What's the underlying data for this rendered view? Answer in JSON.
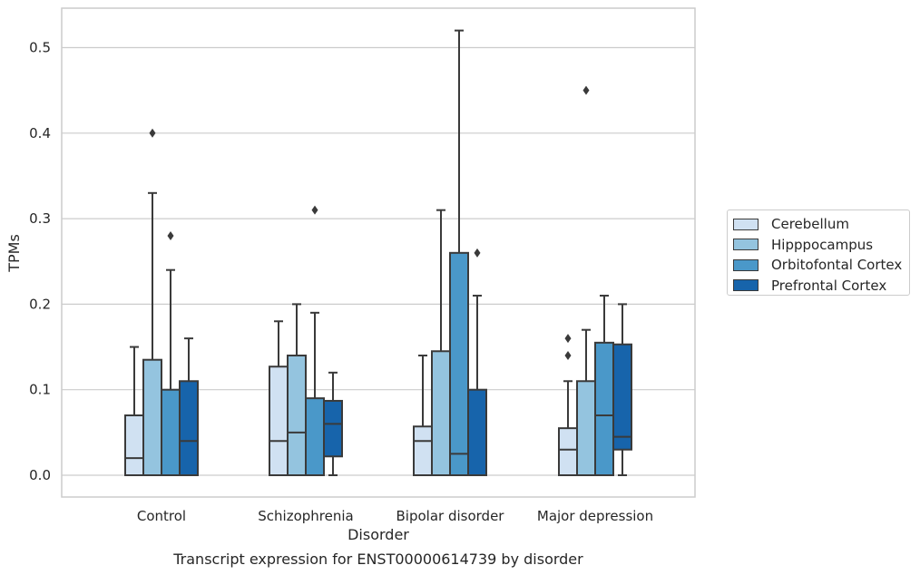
{
  "chart_data": {
    "type": "box",
    "title": "Transcript expression for ENST00000614739 by disorder",
    "xlabel": "Disorder",
    "ylabel": "TPMs",
    "ylim": [
      -0.025,
      0.55
    ],
    "yticks": [
      "0.0",
      "0.1",
      "0.2",
      "0.3",
      "0.4",
      "0.5"
    ],
    "categories": [
      "Control",
      "Schizophrenia",
      "Bipolar disorder",
      "Major depression"
    ],
    "grid": true,
    "legend_position": "right",
    "series": [
      {
        "name": "Cerebellum",
        "color": "#d0e1f2",
        "boxes": [
          {
            "whisker_low": 0.0,
            "q1": 0.0,
            "median": 0.02,
            "q3": 0.07,
            "whisker_high": 0.15,
            "outliers": []
          },
          {
            "whisker_low": 0.0,
            "q1": 0.0,
            "median": 0.04,
            "q3": 0.127,
            "whisker_high": 0.18,
            "outliers": []
          },
          {
            "whisker_low": 0.0,
            "q1": 0.0,
            "median": 0.04,
            "q3": 0.057,
            "whisker_high": 0.14,
            "outliers": []
          },
          {
            "whisker_low": 0.0,
            "q1": 0.0,
            "median": 0.03,
            "q3": 0.055,
            "whisker_high": 0.11,
            "outliers": [
              0.14,
              0.16
            ]
          }
        ]
      },
      {
        "name": "Hipppocampus",
        "color": "#94c4df",
        "boxes": [
          {
            "whisker_low": 0.0,
            "q1": 0.0,
            "median": 0.0,
            "q3": 0.135,
            "whisker_high": 0.33,
            "outliers": [
              0.4
            ]
          },
          {
            "whisker_low": 0.0,
            "q1": 0.0,
            "median": 0.05,
            "q3": 0.14,
            "whisker_high": 0.2,
            "outliers": []
          },
          {
            "whisker_low": 0.0,
            "q1": 0.0,
            "median": 0.0,
            "q3": 0.145,
            "whisker_high": 0.31,
            "outliers": []
          },
          {
            "whisker_low": 0.0,
            "q1": 0.0,
            "median": 0.0,
            "q3": 0.11,
            "whisker_high": 0.17,
            "outliers": [
              0.45
            ]
          }
        ]
      },
      {
        "name": "Orbitofontal Cortex",
        "color": "#4a98c9",
        "boxes": [
          {
            "whisker_low": 0.0,
            "q1": 0.0,
            "median": 0.0,
            "q3": 0.1,
            "whisker_high": 0.24,
            "outliers": [
              0.28
            ]
          },
          {
            "whisker_low": 0.0,
            "q1": 0.0,
            "median": 0.0,
            "q3": 0.09,
            "whisker_high": 0.19,
            "outliers": [
              0.31
            ]
          },
          {
            "whisker_low": 0.0,
            "q1": 0.0,
            "median": 0.025,
            "q3": 0.26,
            "whisker_high": 0.52,
            "outliers": []
          },
          {
            "whisker_low": 0.0,
            "q1": 0.0,
            "median": 0.07,
            "q3": 0.155,
            "whisker_high": 0.21,
            "outliers": []
          }
        ]
      },
      {
        "name": "Prefrontal Cortex",
        "color": "#1764ab",
        "boxes": [
          {
            "whisker_low": 0.0,
            "q1": 0.0,
            "median": 0.04,
            "q3": 0.11,
            "whisker_high": 0.16,
            "outliers": []
          },
          {
            "whisker_low": 0.0,
            "q1": 0.022,
            "median": 0.06,
            "q3": 0.087,
            "whisker_high": 0.12,
            "outliers": []
          },
          {
            "whisker_low": 0.0,
            "q1": 0.0,
            "median": 0.0,
            "q3": 0.1,
            "whisker_high": 0.21,
            "outliers": [
              0.26
            ]
          },
          {
            "whisker_low": 0.0,
            "q1": 0.03,
            "median": 0.045,
            "q3": 0.153,
            "whisker_high": 0.2,
            "outliers": []
          }
        ]
      }
    ]
  }
}
